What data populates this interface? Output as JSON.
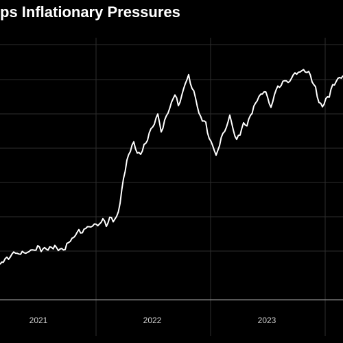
{
  "chart_data": {
    "type": "line",
    "title": "ps Inflationary Pressures",
    "xlabel": "",
    "ylabel": "",
    "x_tick_labels": [
      "2021",
      "2022",
      "2023"
    ],
    "grid": true,
    "legend": "none",
    "colors": {
      "background": "#000000",
      "line": "#ffffff",
      "grid": "#2e2e2e",
      "axis": "#8a8a8a",
      "text": "#ffffff"
    },
    "series": [
      {
        "values": [
          [
            0,
            0.07
          ],
          [
            5,
            0.08
          ],
          [
            10,
            0.09
          ],
          [
            15,
            0.1
          ],
          [
            20,
            0.11
          ],
          [
            25,
            0.12
          ],
          [
            30,
            0.11
          ],
          [
            35,
            0.12
          ],
          [
            40,
            0.12
          ],
          [
            45,
            0.12
          ],
          [
            50,
            0.13
          ],
          [
            55,
            0.14
          ],
          [
            60,
            0.13
          ],
          [
            65,
            0.14
          ],
          [
            70,
            0.13
          ],
          [
            75,
            0.14
          ],
          [
            80,
            0.14
          ],
          [
            85,
            0.13
          ],
          [
            90,
            0.13
          ],
          [
            95,
            0.14
          ],
          [
            100,
            0.16
          ],
          [
            105,
            0.18
          ],
          [
            110,
            0.19
          ],
          [
            115,
            0.21
          ],
          [
            120,
            0.21
          ],
          [
            125,
            0.22
          ],
          [
            130,
            0.24
          ],
          [
            135,
            0.23
          ],
          [
            140,
            0.24
          ],
          [
            145,
            0.24
          ],
          [
            150,
            0.26
          ],
          [
            155,
            0.24
          ],
          [
            160,
            0.27
          ],
          [
            165,
            0.26
          ],
          [
            170,
            0.27
          ],
          [
            175,
            0.33
          ],
          [
            180,
            0.44
          ],
          [
            185,
            0.52
          ],
          [
            190,
            0.57
          ],
          [
            195,
            0.6
          ],
          [
            200,
            0.56
          ],
          [
            205,
            0.54
          ],
          [
            210,
            0.59
          ],
          [
            215,
            0.61
          ],
          [
            220,
            0.66
          ],
          [
            225,
            0.69
          ],
          [
            230,
            0.72
          ],
          [
            235,
            0.65
          ],
          [
            240,
            0.69
          ],
          [
            245,
            0.73
          ],
          [
            250,
            0.78
          ],
          [
            255,
            0.81
          ],
          [
            260,
            0.77
          ],
          [
            265,
            0.8
          ],
          [
            270,
            0.86
          ],
          [
            275,
            0.89
          ],
          [
            280,
            0.84
          ],
          [
            285,
            0.8
          ],
          [
            290,
            0.73
          ],
          [
            295,
            0.7
          ],
          [
            300,
            0.68
          ],
          [
            305,
            0.62
          ],
          [
            310,
            0.58
          ],
          [
            315,
            0.55
          ],
          [
            320,
            0.59
          ],
          [
            325,
            0.64
          ],
          [
            330,
            0.67
          ],
          [
            335,
            0.71
          ],
          [
            340,
            0.66
          ],
          [
            345,
            0.61
          ],
          [
            350,
            0.64
          ],
          [
            355,
            0.69
          ],
          [
            360,
            0.67
          ],
          [
            365,
            0.72
          ],
          [
            370,
            0.75
          ],
          [
            375,
            0.79
          ],
          [
            380,
            0.81
          ],
          [
            385,
            0.83
          ],
          [
            390,
            0.8
          ],
          [
            395,
            0.75
          ],
          [
            400,
            0.81
          ],
          [
            405,
            0.84
          ],
          [
            410,
            0.86
          ],
          [
            415,
            0.87
          ],
          [
            420,
            0.87
          ],
          [
            425,
            0.88
          ],
          [
            430,
            0.9
          ],
          [
            435,
            0.91
          ],
          [
            440,
            0.91
          ],
          [
            445,
            0.92
          ],
          [
            450,
            0.91
          ],
          [
            455,
            0.87
          ],
          [
            460,
            0.84
          ],
          [
            465,
            0.77
          ],
          [
            470,
            0.76
          ],
          [
            475,
            0.79
          ],
          [
            480,
            0.81
          ],
          [
            485,
            0.85
          ],
          [
            490,
            0.87
          ],
          [
            495,
            0.88
          ],
          [
            500,
            0.89
          ]
        ]
      }
    ]
  }
}
